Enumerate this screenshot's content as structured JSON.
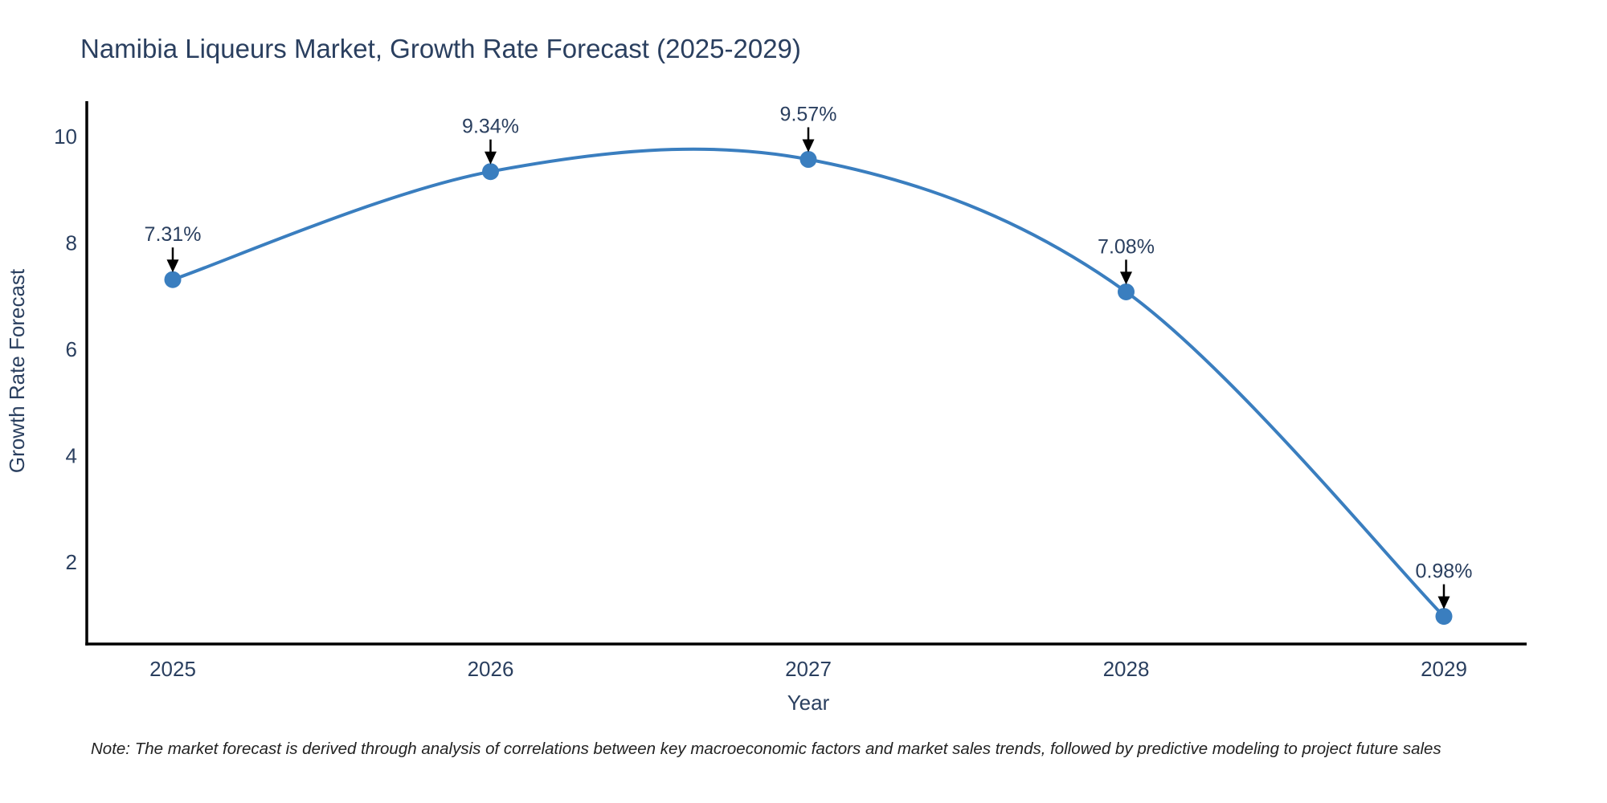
{
  "page": {
    "title": "Namibia Liqueurs Market, Growth Rate Forecast (2025-2029)",
    "note": "Note: The market forecast is derived through analysis of correlations between key macroeconomic factors and market sales trends, followed by predictive modeling to project future sales"
  },
  "chart_data": {
    "type": "line",
    "line_shape": "spline",
    "title": "Namibia Liqueurs Market, Growth Rate Forecast (2025-2029)",
    "xlabel": "Year",
    "ylabel": "Growth Rate Forecast",
    "categories": [
      "2025",
      "2026",
      "2027",
      "2028",
      "2029"
    ],
    "values": [
      7.31,
      9.34,
      9.57,
      7.08,
      0.98
    ],
    "point_labels": [
      "7.31%",
      "9.34%",
      "9.57%",
      "7.08%",
      "0.98%"
    ],
    "y_ticks": [
      2,
      4,
      6,
      8,
      10
    ],
    "ylim": [
      0.45,
      10.6
    ],
    "grid": false,
    "legend": "none",
    "markers": true,
    "annotations": "value labels with black down arrows above each point",
    "colors": {
      "line": "#3a7ebf",
      "marker": "#3a7ebf",
      "text": "#2a3f5f",
      "axis": "#000000",
      "arrow": "#000000",
      "note": "#222222",
      "background": "#ffffff"
    }
  }
}
